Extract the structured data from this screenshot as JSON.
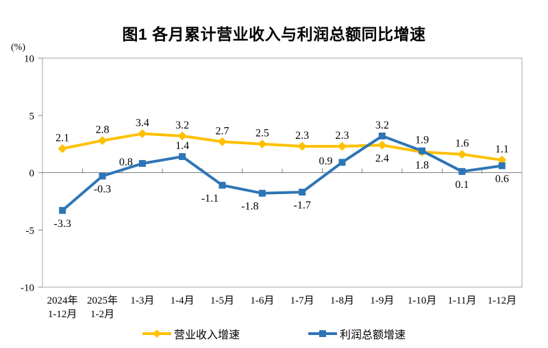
{
  "chart_data": {
    "type": "line",
    "title": "图1 各月累计营业收入与利润总额同比增速",
    "unit_label": "(%)",
    "categories": [
      [
        "2024年",
        "1-12月"
      ],
      [
        "2025年",
        "1-2月"
      ],
      [
        "1-3月"
      ],
      [
        "1-4月"
      ],
      [
        "1-5月"
      ],
      [
        "1-6月"
      ],
      [
        "1-7月"
      ],
      [
        "1-8月"
      ],
      [
        "1-9月"
      ],
      [
        "1-10月"
      ],
      [
        "1-11月"
      ],
      [
        "1-12月"
      ]
    ],
    "ylim": [
      -10,
      10
    ],
    "yticks": [
      10,
      5,
      0,
      -5,
      -10
    ],
    "grid": false,
    "legend_position": "bottom",
    "series": [
      {
        "id": "revenue-growth",
        "name": "营业收入增速",
        "color": "#FFC000",
        "marker": "diamond",
        "values": [
          2.1,
          2.8,
          3.4,
          3.2,
          2.7,
          2.5,
          2.3,
          2.3,
          2.4,
          1.8,
          1.6,
          1.1
        ],
        "label_sides": [
          "above",
          "above",
          "above",
          "above",
          "above",
          "above",
          "above",
          "above",
          "below",
          "below",
          "above",
          "above"
        ]
      },
      {
        "id": "profit-growth",
        "name": "利润总额增速",
        "color": "#2E75B6",
        "marker": "square",
        "values": [
          -3.3,
          -0.3,
          0.8,
          1.4,
          -1.1,
          -1.8,
          -1.7,
          0.9,
          3.2,
          1.9,
          0.1,
          0.6
        ],
        "label_sides": [
          "below",
          "below",
          "left",
          "above",
          "below-left",
          "below-left",
          "below",
          "left",
          "above",
          "above",
          "below",
          "below"
        ]
      }
    ],
    "axis_color": "#A6A6A6",
    "zero_line_color": "#808080",
    "text_color": "#000000"
  }
}
